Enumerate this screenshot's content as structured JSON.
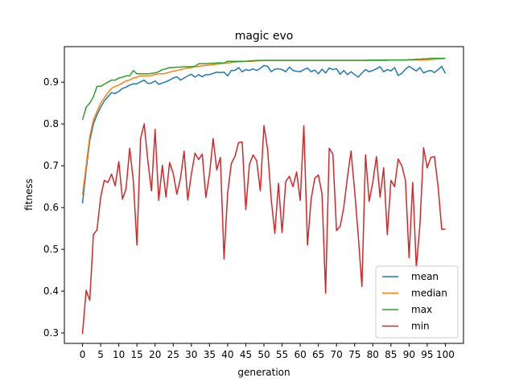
{
  "chart_data": {
    "type": "line",
    "title": "magic evo",
    "xlabel": "generation",
    "ylabel": "fitness",
    "xlim": [
      -5,
      105
    ],
    "ylim": [
      0.275,
      0.985
    ],
    "xticks": [
      0,
      5,
      10,
      15,
      20,
      25,
      30,
      35,
      40,
      45,
      50,
      55,
      60,
      65,
      70,
      75,
      80,
      85,
      90,
      95,
      100
    ],
    "yticks": [
      0.3,
      0.4,
      0.5,
      0.6,
      0.7,
      0.8,
      0.9
    ],
    "grid": false,
    "legend_position": "lower-right",
    "series": [
      {
        "name": "mean",
        "color": "#1f77b4",
        "values": [
          0.61,
          0.69,
          0.76,
          0.8,
          0.822,
          0.84,
          0.855,
          0.865,
          0.875,
          0.873,
          0.878,
          0.885,
          0.888,
          0.893,
          0.896,
          0.896,
          0.901,
          0.905,
          0.897,
          0.898,
          0.903,
          0.895,
          0.898,
          0.901,
          0.905,
          0.91,
          0.913,
          0.905,
          0.91,
          0.915,
          0.919,
          0.912,
          0.918,
          0.913,
          0.918,
          0.918,
          0.921,
          0.924,
          0.923,
          0.924,
          0.915,
          0.928,
          0.928,
          0.935,
          0.925,
          0.93,
          0.928,
          0.932,
          0.928,
          0.933,
          0.94,
          0.938,
          0.925,
          0.931,
          0.932,
          0.93,
          0.925,
          0.936,
          0.928,
          0.926,
          0.925,
          0.93,
          0.934,
          0.925,
          0.929,
          0.92,
          0.931,
          0.922,
          0.934,
          0.93,
          0.932,
          0.919,
          0.928,
          0.918,
          0.925,
          0.918,
          0.912,
          0.922,
          0.93,
          0.925,
          0.928,
          0.932,
          0.937,
          0.925,
          0.93,
          0.927,
          0.935,
          0.916,
          0.921,
          0.931,
          0.938,
          0.932,
          0.927,
          0.935,
          0.922,
          0.926,
          0.928,
          0.923,
          0.93,
          0.938,
          0.921
        ]
      },
      {
        "name": "median",
        "color": "#ff7f0e",
        "values": [
          0.63,
          0.7,
          0.77,
          0.81,
          0.83,
          0.85,
          0.862,
          0.875,
          0.885,
          0.89,
          0.893,
          0.898,
          0.903,
          0.905,
          0.91,
          0.912,
          0.915,
          0.915,
          0.915,
          0.916,
          0.918,
          0.92,
          0.92,
          0.921,
          0.924,
          0.926,
          0.928,
          0.93,
          0.932,
          0.934,
          0.935,
          0.937,
          0.938,
          0.939,
          0.94,
          0.941,
          0.942,
          0.943,
          0.944,
          0.945,
          0.946,
          0.947,
          0.948,
          0.949,
          0.949,
          0.95,
          0.95,
          0.95,
          0.951,
          0.951,
          0.952,
          0.952,
          0.952,
          0.952,
          0.952,
          0.952,
          0.952,
          0.952,
          0.952,
          0.952,
          0.952,
          0.952,
          0.952,
          0.952,
          0.952,
          0.952,
          0.952,
          0.952,
          0.952,
          0.952,
          0.952,
          0.952,
          0.952,
          0.952,
          0.952,
          0.952,
          0.952,
          0.952,
          0.952,
          0.952,
          0.952,
          0.952,
          0.952,
          0.952,
          0.952,
          0.953,
          0.953,
          0.953,
          0.953,
          0.953,
          0.953,
          0.953,
          0.953,
          0.953,
          0.953,
          0.954,
          0.954,
          0.955,
          0.956,
          0.956,
          0.957
        ]
      },
      {
        "name": "max",
        "color": "#2ca02c",
        "values": [
          0.81,
          0.84,
          0.85,
          0.865,
          0.89,
          0.89,
          0.895,
          0.9,
          0.905,
          0.905,
          0.91,
          0.912,
          0.915,
          0.915,
          0.928,
          0.92,
          0.92,
          0.92,
          0.92,
          0.921,
          0.922,
          0.925,
          0.93,
          0.932,
          0.935,
          0.935,
          0.936,
          0.936,
          0.937,
          0.937,
          0.937,
          0.938,
          0.944,
          0.944,
          0.944,
          0.945,
          0.945,
          0.946,
          0.946,
          0.946,
          0.95,
          0.95,
          0.95,
          0.95,
          0.95,
          0.95,
          0.951,
          0.951,
          0.952,
          0.952,
          0.952,
          0.952,
          0.952,
          0.952,
          0.952,
          0.952,
          0.952,
          0.952,
          0.952,
          0.952,
          0.952,
          0.952,
          0.952,
          0.952,
          0.952,
          0.952,
          0.952,
          0.952,
          0.952,
          0.952,
          0.952,
          0.952,
          0.952,
          0.952,
          0.952,
          0.952,
          0.952,
          0.952,
          0.952,
          0.953,
          0.953,
          0.953,
          0.953,
          0.953,
          0.953,
          0.953,
          0.953,
          0.953,
          0.953,
          0.953,
          0.954,
          0.954,
          0.955,
          0.955,
          0.956,
          0.956,
          0.957,
          0.957,
          0.957,
          0.957,
          0.957
        ]
      },
      {
        "name": "min",
        "color": "#d62728",
        "values": [
          0.298,
          0.402,
          0.378,
          0.535,
          0.547,
          0.625,
          0.665,
          0.66,
          0.68,
          0.652,
          0.71,
          0.62,
          0.645,
          0.742,
          0.664,
          0.51,
          0.765,
          0.8,
          0.712,
          0.64,
          0.787,
          0.617,
          0.701,
          0.625,
          0.708,
          0.682,
          0.632,
          0.67,
          0.735,
          0.618,
          0.68,
          0.73,
          0.715,
          0.728,
          0.624,
          0.68,
          0.765,
          0.69,
          0.72,
          0.477,
          0.635,
          0.705,
          0.722,
          0.755,
          0.757,
          0.595,
          0.703,
          0.726,
          0.712,
          0.64,
          0.796,
          0.74,
          0.62,
          0.538,
          0.658,
          0.54,
          0.662,
          0.675,
          0.65,
          0.685,
          0.617,
          0.796,
          0.51,
          0.62,
          0.67,
          0.678,
          0.633,
          0.395,
          0.742,
          0.728,
          0.545,
          0.555,
          0.6,
          0.672,
          0.735,
          0.64,
          0.532,
          0.411,
          0.726,
          0.615,
          0.66,
          0.722,
          0.625,
          0.695,
          0.535,
          0.665,
          0.65,
          0.716,
          0.7,
          0.665,
          0.48,
          0.66,
          0.456,
          0.56,
          0.743,
          0.695,
          0.72,
          0.722,
          0.65,
          0.548,
          0.548
        ]
      }
    ]
  }
}
